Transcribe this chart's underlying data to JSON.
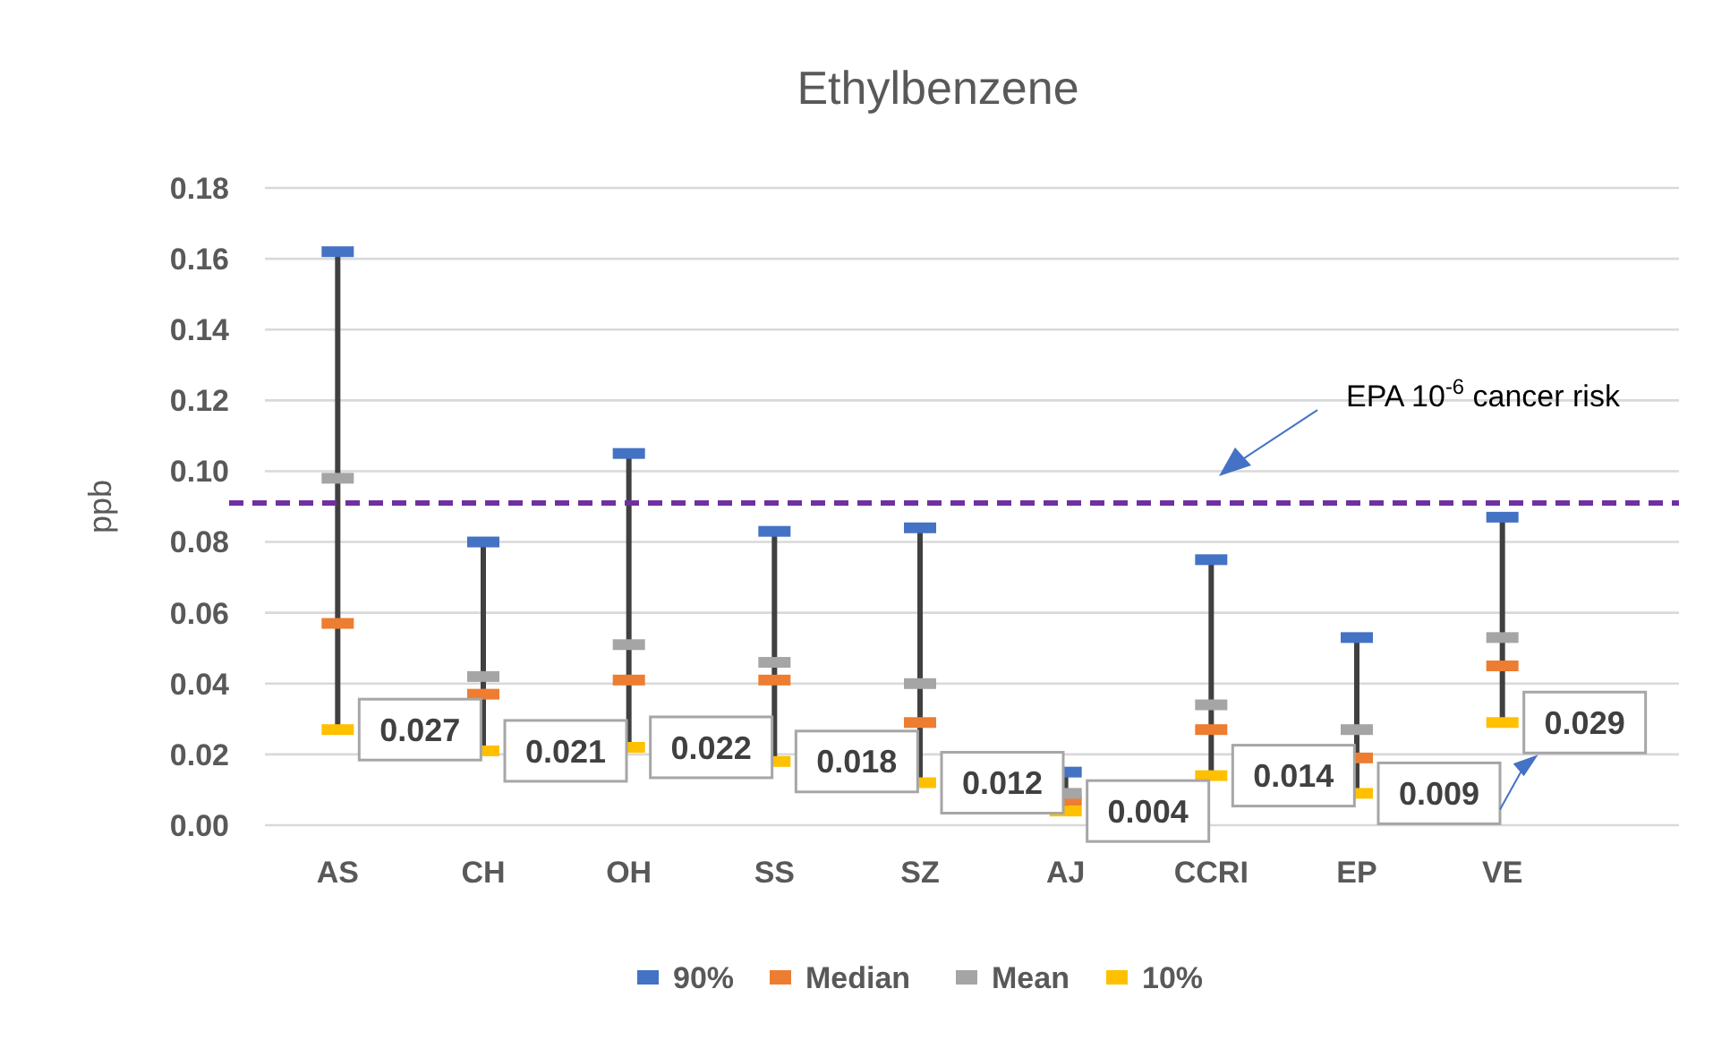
{
  "chart_data": {
    "type": "scatter",
    "title": "Ethylbenzene",
    "ylabel": "ppb",
    "categories": [
      "AS",
      "CH",
      "OH",
      "SS",
      "SZ",
      "AJ",
      "CCRI",
      "EP",
      "VE"
    ],
    "ylim": [
      0,
      0.18
    ],
    "yticks": [
      {
        "value": 0,
        "label": "0.00"
      },
      {
        "value": 0.02,
        "label": "0.02"
      },
      {
        "value": 0.04,
        "label": "0.04"
      },
      {
        "value": 0.06,
        "label": "0.06"
      },
      {
        "value": 0.08,
        "label": "0.08"
      },
      {
        "value": 0.1,
        "label": "0.10"
      },
      {
        "value": 0.12,
        "label": "0.12"
      },
      {
        "value": 0.14,
        "label": "0.14"
      },
      {
        "value": 0.16,
        "label": "0.16"
      },
      {
        "value": 0.18,
        "label": "0.18"
      }
    ],
    "grid": "y",
    "legend": "bottom",
    "marker": "square",
    "series": [
      {
        "name": "90%",
        "color": "#4472c4",
        "values": [
          0.162,
          0.08,
          0.105,
          0.083,
          0.084,
          0.015,
          0.075,
          0.053,
          0.087
        ]
      },
      {
        "name": "Median",
        "color": "#ed7d31",
        "values": [
          0.057,
          0.037,
          0.041,
          0.041,
          0.029,
          0.007,
          0.027,
          0.019,
          0.045
        ]
      },
      {
        "name": "Mean",
        "color": "#a5a5a5",
        "values": [
          0.098,
          0.042,
          0.051,
          0.046,
          0.04,
          0.009,
          0.034,
          0.027,
          0.053
        ]
      },
      {
        "name": "10%",
        "color": "#ffc000",
        "values": [
          0.027,
          0.021,
          0.022,
          0.018,
          0.012,
          0.004,
          0.014,
          0.009,
          0.029
        ],
        "value_labels": [
          "0.027",
          "0.021",
          "0.022",
          "0.018",
          "0.012",
          "0.004",
          "0.014",
          "0.009",
          "0.029"
        ]
      }
    ],
    "ref_lines": [
      {
        "axis": "y",
        "value": 0.091,
        "label": "EPA 10$^{-6}$ cancer risk",
        "color": "#7030a0",
        "line_style": "dashed"
      }
    ]
  }
}
